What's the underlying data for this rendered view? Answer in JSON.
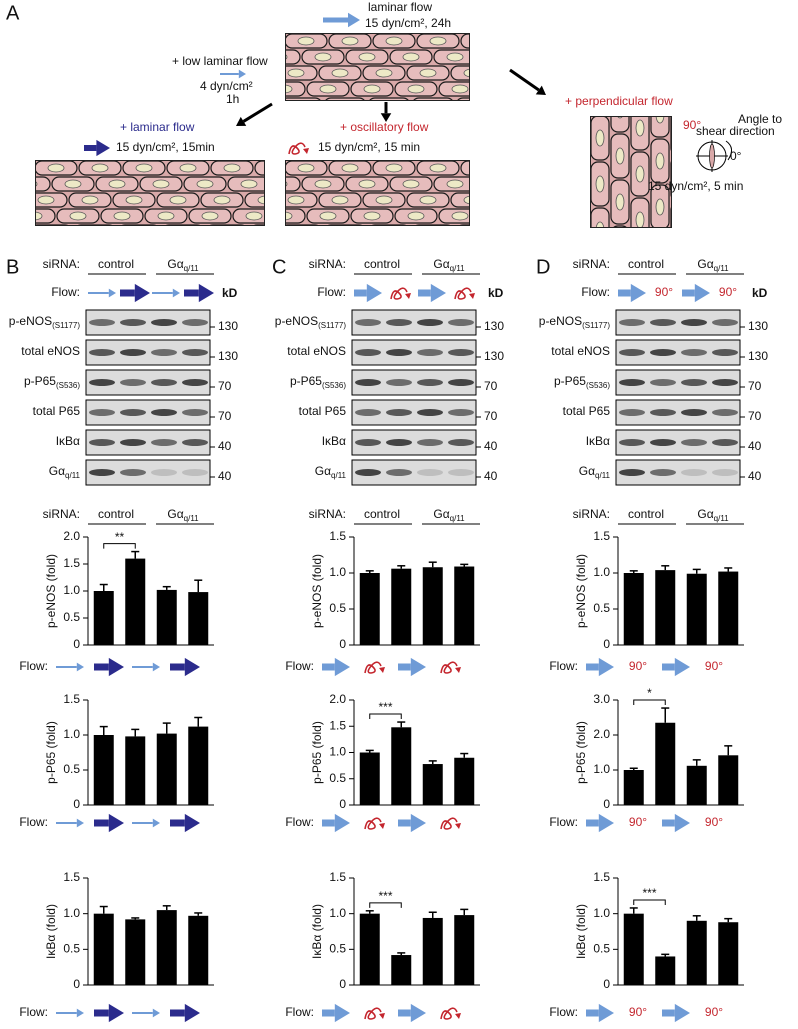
{
  "diagram": {
    "letter": "A",
    "top_label": "laminar flow",
    "top_condition": "15 dyn/cm², 24h",
    "low_flow": "+ low laminar flow",
    "low_flow_rate": "4 dyn/cm²",
    "low_flow_time": "1h",
    "laminar": "+ laminar flow",
    "laminar_condition": "15 dyn/cm², 15min",
    "oscillatory": "+ oscillatory flow",
    "oscillatory_condition": "15 dyn/cm², 15 min",
    "perpendicular": "+ perpendicular flow",
    "angle_90": "90°",
    "angle_0": "0°",
    "angle_caption_1": "Angle to",
    "angle_caption_2": "shear direction",
    "perpendicular_condition": "15 dyn/cm², 5 min"
  },
  "labels": {
    "sirna": "siRNA:",
    "flow": "Flow:",
    "control": "control",
    "knockdown": {
      "main": "Gα",
      "sub": "q/11"
    },
    "kd": "kD"
  },
  "panels": [
    {
      "letter": "B"
    },
    {
      "letter": "C"
    },
    {
      "letter": "D",
      "angle": "90°"
    }
  ],
  "blot_rows": [
    {
      "label": {
        "main": "p-eNOS",
        "sub": "(S1177)"
      },
      "kd": 130
    },
    {
      "label": "total eNOS",
      "kd": 130
    },
    {
      "label": {
        "main": "p-P65",
        "sub": "(S536)"
      },
      "kd": 70
    },
    {
      "label": "total P65",
      "kd": 70
    },
    {
      "label": "IκBα",
      "kd": 40
    },
    {
      "label": {
        "main": "Gα",
        "sub": "q/11"
      },
      "kd": 40
    }
  ],
  "chart_data": [
    {
      "type": "bar",
      "ylabel": "p-eNOS (fold)",
      "values": [
        1.0,
        1.6,
        1.02,
        0.98
      ],
      "errors": [
        0.12,
        0.13,
        0.06,
        0.22
      ],
      "ylim": [
        0,
        2
      ],
      "yticks": [
        0,
        0.5,
        {
          "value": 1,
          "label": "1.0"
        },
        1.5,
        {
          "value": 2,
          "label": "2.0"
        }
      ],
      "annotation": "**",
      "color": "#000000"
    },
    {
      "type": "bar",
      "ylabel": "p-P65 (fold)",
      "values": [
        1.0,
        0.98,
        1.02,
        1.12
      ],
      "errors": [
        0.12,
        0.1,
        0.15,
        0.13
      ],
      "ylim": [
        0,
        1.5
      ],
      "yticks": [
        0,
        0.5,
        {
          "value": 1,
          "label": "1.0"
        },
        1.5
      ],
      "color": "#000000"
    },
    {
      "type": "bar",
      "ylabel": "IκBα (fold)",
      "values": [
        1.0,
        0.92,
        1.05,
        0.97
      ],
      "errors": [
        0.1,
        0.02,
        0.06,
        0.04
      ],
      "ylim": [
        0,
        1.5
      ],
      "yticks": [
        0,
        0.5,
        {
          "value": 1,
          "label": "1.0"
        },
        1.5
      ],
      "color": "#000000"
    },
    {
      "type": "bar",
      "ylabel": "p-eNOS (fold)",
      "values": [
        1.0,
        1.06,
        1.08,
        1.09
      ],
      "errors": [
        0.03,
        0.04,
        0.07,
        0.03
      ],
      "ylim": [
        0,
        1.5
      ],
      "yticks": [
        0,
        0.5,
        {
          "value": 1,
          "label": "1.0"
        },
        1.5
      ],
      "color": "#000000"
    },
    {
      "type": "bar",
      "ylabel": "p-P65 (fold)",
      "values": [
        1.0,
        1.48,
        0.78,
        0.9
      ],
      "errors": [
        0.04,
        0.1,
        0.06,
        0.08
      ],
      "ylim": [
        0,
        2
      ],
      "yticks": [
        0,
        0.5,
        {
          "value": 1,
          "label": "1.0"
        },
        1.5,
        {
          "value": 2,
          "label": "2.0"
        }
      ],
      "annotation": "***",
      "color": "#000000"
    },
    {
      "type": "bar",
      "ylabel": "IκBα (fold)",
      "values": [
        1.0,
        0.42,
        0.94,
        0.98
      ],
      "errors": [
        0.04,
        0.03,
        0.08,
        0.08
      ],
      "ylim": [
        0,
        1.5
      ],
      "yticks": [
        0,
        0.5,
        {
          "value": 1,
          "label": "1.0"
        },
        1.5
      ],
      "annotation": "***",
      "color": "#000000"
    },
    {
      "type": "bar",
      "ylabel": "p-eNOS (fold)",
      "values": [
        1.0,
        1.04,
        0.99,
        1.02
      ],
      "errors": [
        0.03,
        0.06,
        0.06,
        0.05
      ],
      "ylim": [
        0,
        1.5
      ],
      "yticks": [
        0,
        0.5,
        {
          "value": 1,
          "label": "1.0"
        },
        1.5
      ],
      "color": "#000000"
    },
    {
      "type": "bar",
      "ylabel": "p-P65 (fold)",
      "values": [
        1.0,
        2.35,
        1.12,
        1.42
      ],
      "errors": [
        0.05,
        0.42,
        0.17,
        0.27
      ],
      "ylim": [
        0,
        3
      ],
      "yticks": [
        0,
        {
          "value": 1,
          "label": "1.0"
        },
        {
          "value": 2,
          "label": "2.0"
        },
        {
          "value": 3,
          "label": "3.0"
        }
      ],
      "annotation": "*",
      "color": "#000000"
    },
    {
      "type": "bar",
      "ylabel": "IκBα (fold)",
      "values": [
        1.0,
        0.4,
        0.9,
        0.88
      ],
      "errors": [
        0.08,
        0.03,
        0.07,
        0.05
      ],
      "ylim": [
        0,
        1.5
      ],
      "yticks": [
        0,
        0.5,
        {
          "value": 1,
          "label": "1.0"
        },
        1.5
      ],
      "annotation": "***",
      "color": "#000000"
    }
  ]
}
